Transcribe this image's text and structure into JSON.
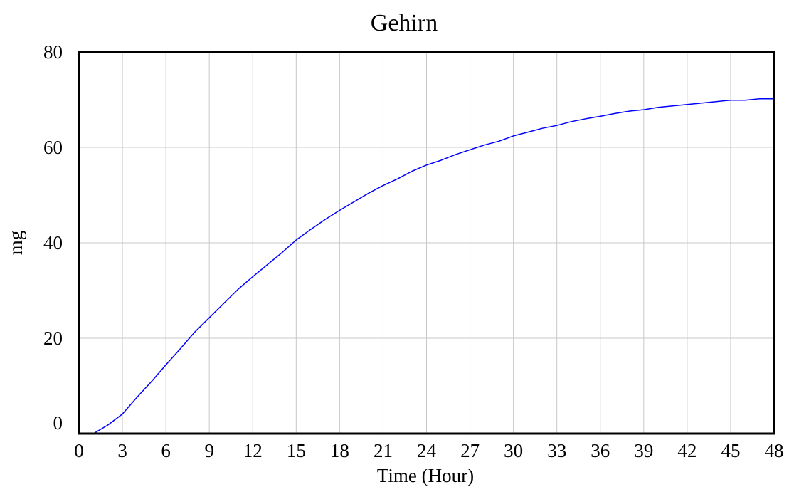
{
  "chart_data": {
    "type": "line",
    "title": "Gehirn",
    "xlabel": "Time (Hour)",
    "ylabel": "mg",
    "xlim": [
      0,
      48
    ],
    "ylim": [
      0,
      80
    ],
    "x_ticks": [
      0,
      3,
      6,
      9,
      12,
      15,
      18,
      21,
      24,
      27,
      30,
      33,
      36,
      39,
      42,
      45,
      48
    ],
    "y_ticks": [
      0,
      20,
      40,
      60,
      80
    ],
    "grid": true,
    "legend": "none",
    "series": [
      {
        "color": "#0000ff",
        "x": [
          0,
          1,
          2,
          3,
          4,
          5,
          6,
          7,
          8,
          9,
          10,
          11,
          12,
          13,
          14,
          15,
          16,
          17,
          18,
          19,
          20,
          21,
          22,
          23,
          24,
          25,
          26,
          27,
          28,
          29,
          30,
          31,
          32,
          33,
          34,
          35,
          36,
          37,
          38,
          39,
          40,
          41,
          42,
          43,
          44,
          45,
          46,
          47,
          48
        ],
        "y": [
          0,
          0,
          1.8,
          4.1,
          7.6,
          10.9,
          14.4,
          17.8,
          21.3,
          24.3,
          27.3,
          30.3,
          32.9,
          35.4,
          37.9,
          40.6,
          42.8,
          44.9,
          46.8,
          48.6,
          50.4,
          52.0,
          53.4,
          55.0,
          56.3,
          57.3,
          58.5,
          59.5,
          60.5,
          61.3,
          62.4,
          63.2,
          64.0,
          64.6,
          65.4,
          66.0,
          66.5,
          67.1,
          67.6,
          67.9,
          68.4,
          68.7,
          69.0,
          69.3,
          69.6,
          69.9,
          69.9,
          70.2,
          70.2
        ]
      }
    ]
  }
}
